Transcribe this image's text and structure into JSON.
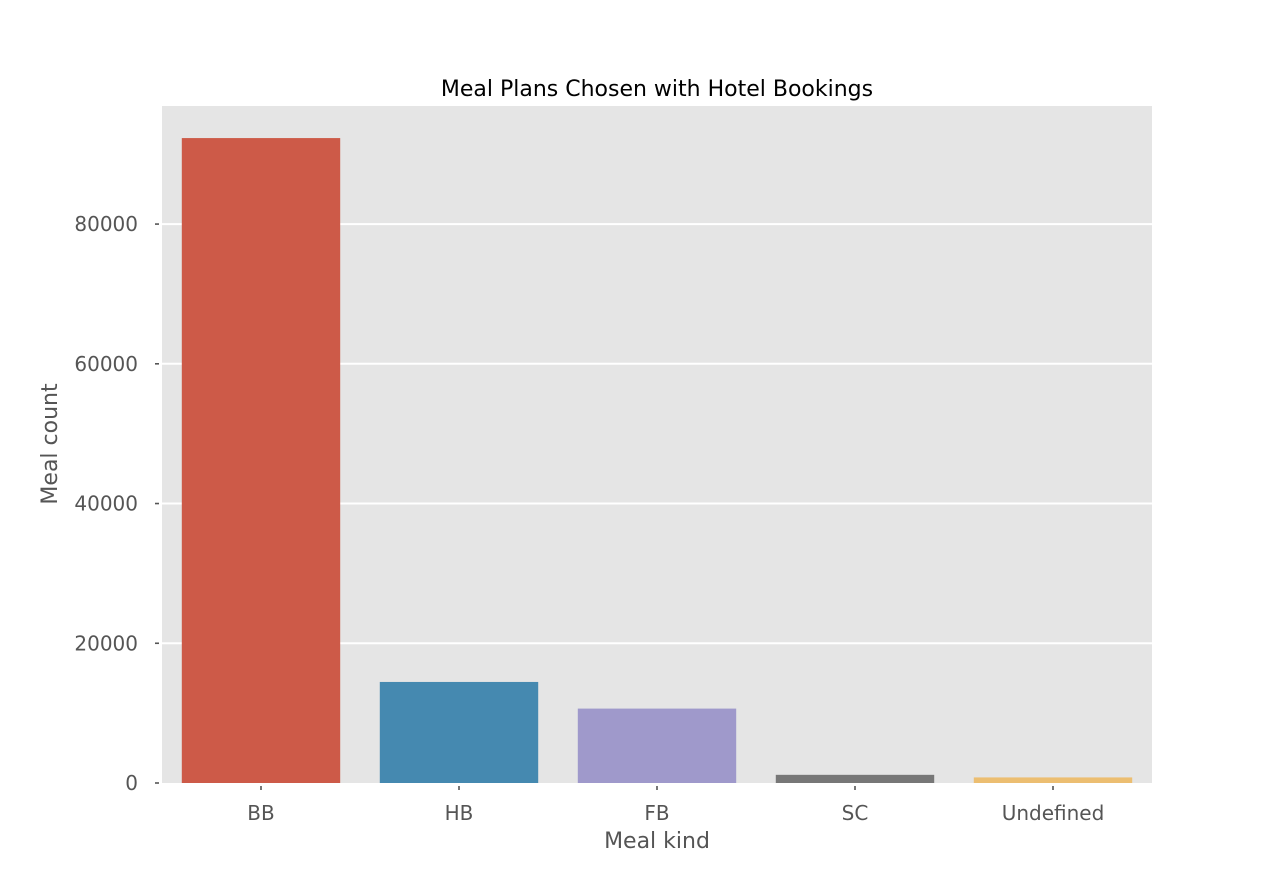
{
  "chart_data": {
    "type": "bar",
    "title": "Meal Plans Chosen with Hotel Bookings",
    "xlabel": "Meal kind",
    "ylabel": "Meal count",
    "categories": [
      "BB",
      "HB",
      "FB",
      "SC",
      "Undefined"
    ],
    "values": [
      92310,
      14463,
      10650,
      1169,
      798
    ],
    "colors": [
      "#cd5a48",
      "#4589b0",
      "#9f99cb",
      "#777777",
      "#ecbe71"
    ],
    "ylim": [
      0,
      96900
    ],
    "yticks": [
      0,
      20000,
      40000,
      60000,
      80000
    ],
    "ytick_labels": [
      "0",
      "20000",
      "40000",
      "60000",
      "80000"
    ],
    "grid": true,
    "background": "#e5e5e5",
    "gridline_color": "#ffffff"
  }
}
